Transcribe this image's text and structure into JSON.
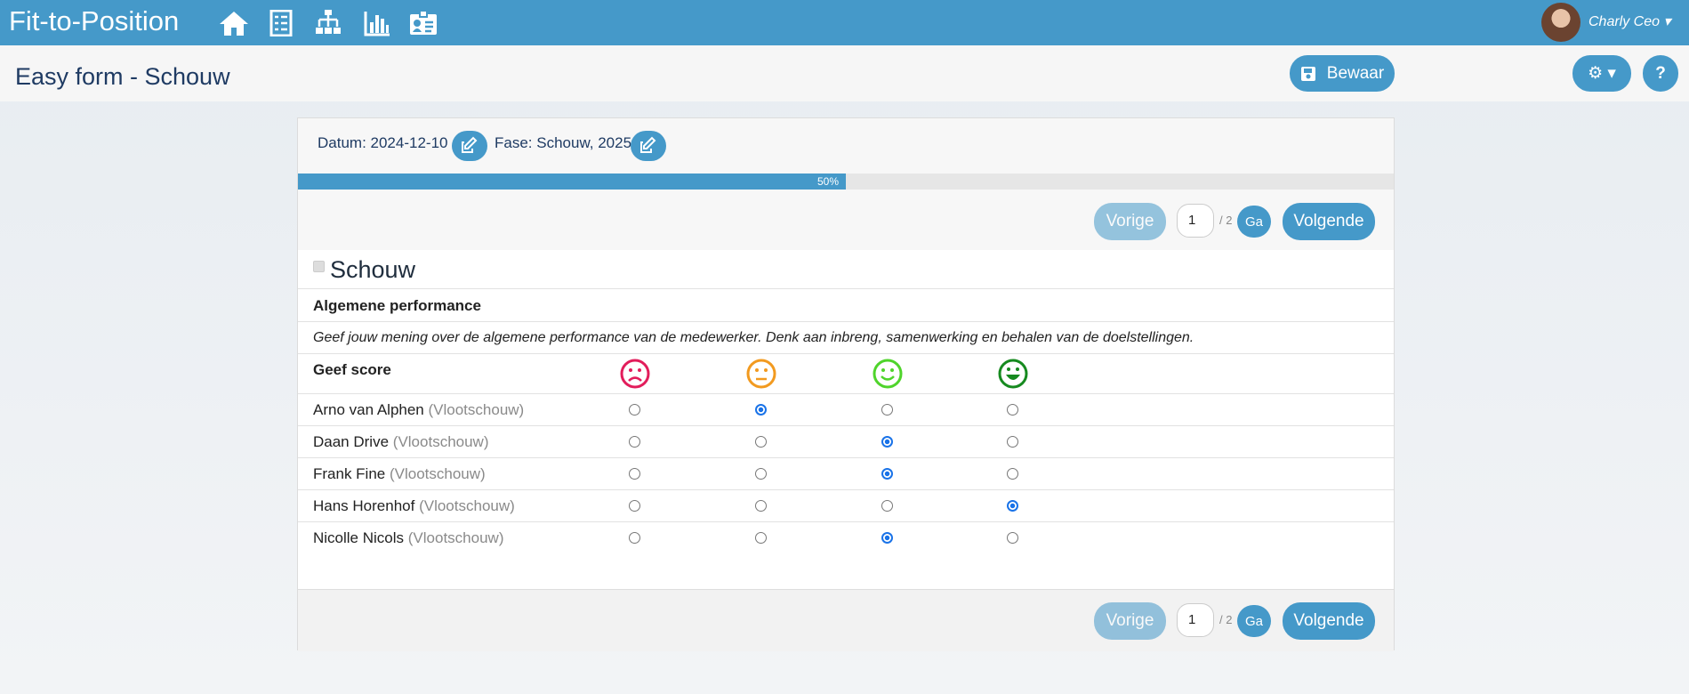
{
  "navbar": {
    "brand": "Fit-to-Position",
    "user": "Charly Ceo"
  },
  "header": {
    "title": "Easy form - Schouw",
    "save": "Bewaar"
  },
  "form": {
    "date": "Datum: 2024-12-10",
    "phase": "Fase: Schouw, 2025",
    "progress": {
      "value": 50,
      "label": "50%"
    },
    "pagers": [
      {
        "prev": "Vorige",
        "page": "1",
        "total": "/ 2",
        "go": "Ga",
        "next": "Volgende"
      },
      {
        "prev": "Vorige",
        "page": "1",
        "total": "/ 2",
        "go": "Ga",
        "next": "Volgende"
      }
    ],
    "section": "Schouw",
    "question": "Algemene performance",
    "description": "Geef jouw mening over de algemene performance van de medewerker. Denk aan inbreng, samenwerking en behalen van de doelstellingen.",
    "score_label": "Geef score",
    "rows": [
      {
        "name": "Arno van Alphen",
        "team": "(Vlootschouw)",
        "score": 2
      },
      {
        "name": "Daan Drive",
        "team": "(Vlootschouw)",
        "score": 3
      },
      {
        "name": "Frank Fine",
        "team": "(Vlootschouw)",
        "score": 3
      },
      {
        "name": "Hans Horenhof",
        "team": "(Vlootschouw)",
        "score": 4
      },
      {
        "name": "Nicolle Nicols",
        "team": "(Vlootschouw)",
        "score": 3
      }
    ]
  }
}
